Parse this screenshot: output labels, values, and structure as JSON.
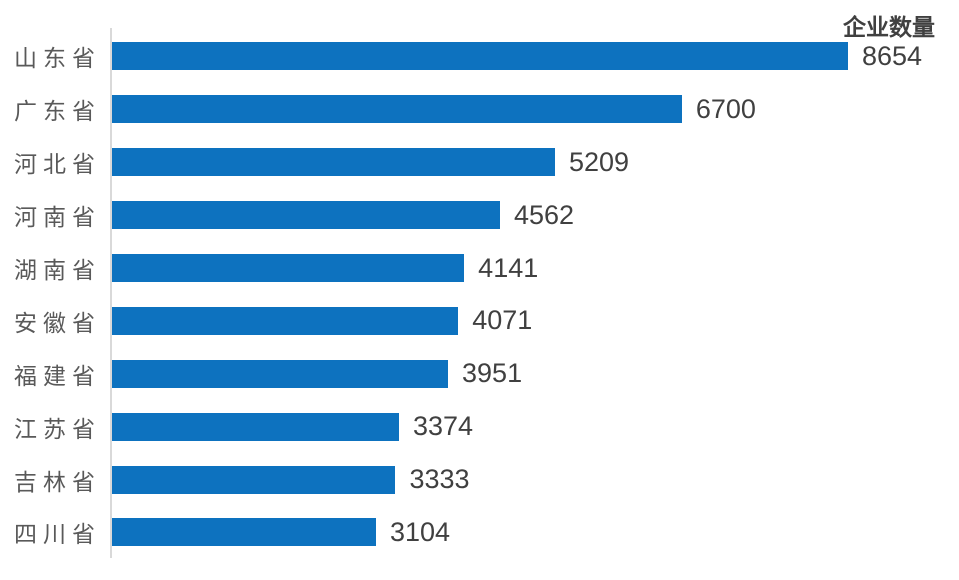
{
  "chart_data": {
    "type": "bar",
    "orientation": "horizontal",
    "title": "企业数量",
    "categories": [
      "山东省",
      "广东省",
      "河北省",
      "河南省",
      "湖南省",
      "安徽省",
      "福建省",
      "江苏省",
      "吉林省",
      "四川省"
    ],
    "values": [
      8654,
      6700,
      5209,
      4562,
      4141,
      4071,
      3951,
      3374,
      3333,
      3104
    ],
    "max_value": 8654,
    "value_labels_shown": true,
    "legend_position": "top-right",
    "grid": false,
    "bar_color": "#0d72bf",
    "axis_color": "#d9d9d9",
    "category_label_color": "#595959",
    "value_label_color": "#404040",
    "background_color": "#ffffff"
  }
}
